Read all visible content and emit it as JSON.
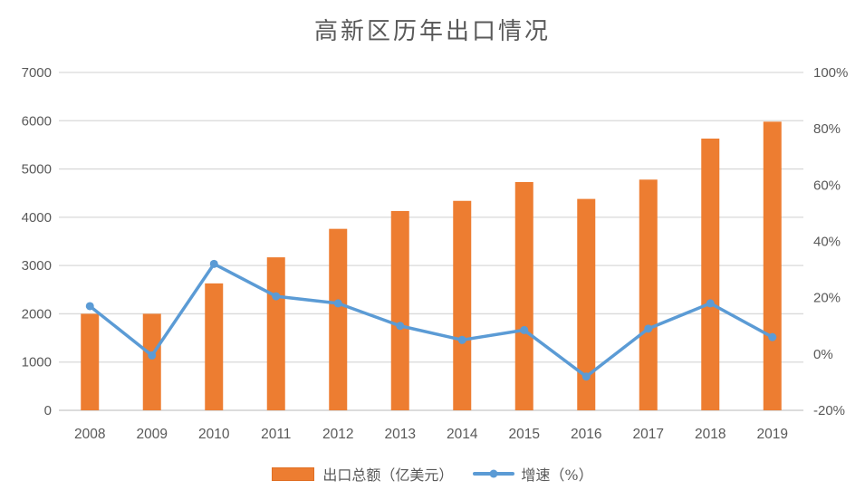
{
  "title": "高新区历年出口情况",
  "colors": {
    "bar": "#ED7D31",
    "bar_border": "#E06F24",
    "line": "#5B9BD5",
    "gridline": "#D9D9D9",
    "zero_line": "#C6C6C6",
    "axis_text": "#595959",
    "title_text": "#595959",
    "background": "#FFFFFF"
  },
  "chart_data": {
    "type": "bar",
    "subtype": "combo-bar-line-dual-axis",
    "title": "高新区历年出口情况",
    "xlabel": "",
    "ylabel_left": "出口总额（亿美元）",
    "ylabel_right": "增速（%）",
    "grid": true,
    "legend_position": "bottom",
    "categories": [
      "2008",
      "2009",
      "2010",
      "2011",
      "2012",
      "2013",
      "2014",
      "2015",
      "2016",
      "2017",
      "2018",
      "2019"
    ],
    "series": [
      {
        "name": "出口总额（亿美元）",
        "type": "bar",
        "axis": "left",
        "color": "#ED7D31",
        "values": [
          2000,
          2000,
          2630,
          3170,
          3760,
          4130,
          4340,
          4730,
          4380,
          4780,
          5630,
          5980
        ]
      },
      {
        "name": "增速（%）",
        "type": "line",
        "axis": "right",
        "color": "#5B9BD5",
        "values": [
          17,
          -0.5,
          32,
          20.5,
          18,
          10,
          5,
          8.5,
          -8,
          9,
          18,
          6
        ]
      }
    ],
    "left_axis": {
      "min": 0,
      "max": 7000,
      "step": 1000,
      "tick_labels": [
        "0",
        "1000",
        "2000",
        "3000",
        "4000",
        "5000",
        "6000",
        "7000"
      ]
    },
    "right_axis": {
      "min": -20,
      "max": 100,
      "step": 20,
      "tick_labels": [
        "-20%",
        "0%",
        "20%",
        "40%",
        "60%",
        "80%",
        "100%"
      ]
    }
  }
}
